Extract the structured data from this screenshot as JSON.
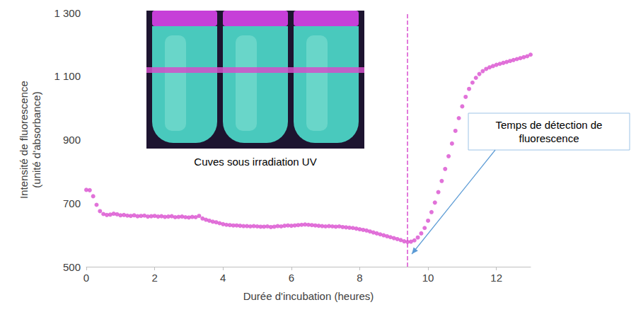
{
  "chart_data": {
    "type": "scatter",
    "x_label": "Durée d'incubation (heures)",
    "y_label": "Intensité de fluorescence (unité d'absorbance)",
    "color": "#d94fcf",
    "marker": "circle",
    "grid": false,
    "xlim": [
      0,
      13
    ],
    "xticks": [
      0,
      2,
      4,
      6,
      8,
      10,
      12
    ],
    "ylim": [
      500,
      1300
    ],
    "yticks": [
      500,
      700,
      900,
      {
        "value": 1100,
        "label": "1 100"
      },
      {
        "value": 1300,
        "label": "1 300"
      }
    ],
    "x": [
      0.0,
      0.1,
      0.2,
      0.3,
      0.4,
      0.5,
      0.6,
      0.7,
      0.8,
      0.9,
      1.0,
      1.1,
      1.2,
      1.3,
      1.4,
      1.5,
      1.6,
      1.7,
      1.8,
      1.9,
      2.0,
      2.1,
      2.2,
      2.3,
      2.4,
      2.5,
      2.6,
      2.7,
      2.8,
      2.9,
      3.0,
      3.1,
      3.2,
      3.3,
      3.4,
      3.5,
      3.6,
      3.7,
      3.8,
      3.9,
      4.0,
      4.1,
      4.2,
      4.3,
      4.4,
      4.5,
      4.6,
      4.7,
      4.8,
      4.9,
      5.0,
      5.1,
      5.2,
      5.3,
      5.4,
      5.5,
      5.6,
      5.7,
      5.8,
      5.9,
      6.0,
      6.1,
      6.2,
      6.3,
      6.4,
      6.5,
      6.6,
      6.7,
      6.8,
      6.9,
      7.0,
      7.1,
      7.2,
      7.3,
      7.4,
      7.5,
      7.6,
      7.7,
      7.8,
      7.9,
      8.0,
      8.1,
      8.2,
      8.3,
      8.4,
      8.5,
      8.6,
      8.7,
      8.8,
      8.9,
      9.0,
      9.1,
      9.2,
      9.3,
      9.4,
      9.5,
      9.6,
      9.7,
      9.8,
      9.9,
      10.0,
      10.1,
      10.2,
      10.3,
      10.4,
      10.5,
      10.6,
      10.7,
      10.8,
      10.9,
      11.0,
      11.1,
      11.2,
      11.3,
      11.4,
      11.5,
      11.6,
      11.7,
      11.8,
      11.9,
      12.0,
      12.1,
      12.2,
      12.3,
      12.4,
      12.5,
      12.6,
      12.7,
      12.8,
      12.9,
      13.0
    ],
    "values": [
      742,
      741,
      722,
      695,
      675,
      666,
      663,
      664,
      667,
      665,
      662,
      663,
      661,
      660,
      662,
      659,
      660,
      661,
      658,
      659,
      660,
      658,
      659,
      657,
      658,
      659,
      656,
      657,
      658,
      656,
      655,
      657,
      656,
      660,
      652,
      648,
      645,
      642,
      640,
      637,
      634,
      632,
      631,
      630,
      630,
      629,
      628,
      628,
      627,
      628,
      627,
      626,
      626,
      627,
      625,
      626,
      628,
      627,
      629,
      630,
      629,
      630,
      631,
      632,
      633,
      632,
      631,
      630,
      629,
      628,
      627,
      628,
      627,
      626,
      627,
      625,
      624,
      623,
      622,
      620,
      618,
      616,
      614,
      611,
      608,
      605,
      602,
      599,
      596,
      593,
      590,
      587,
      584,
      580,
      578,
      579,
      583,
      592,
      605,
      622,
      645,
      672,
      702,
      735,
      770,
      808,
      848,
      888,
      928,
      968,
      1005,
      1035,
      1060,
      1080,
      1095,
      1107,
      1116,
      1123,
      1128,
      1132,
      1136,
      1139,
      1142,
      1145,
      1148,
      1151,
      1154,
      1157,
      1160,
      1163,
      1168
    ],
    "annotations": [
      {
        "text": "Temps de détection de fluorescence",
        "x": 9.4,
        "line_style": "dashed"
      }
    ],
    "inset": {
      "caption": "Cuves sous irradiation UV"
    }
  }
}
